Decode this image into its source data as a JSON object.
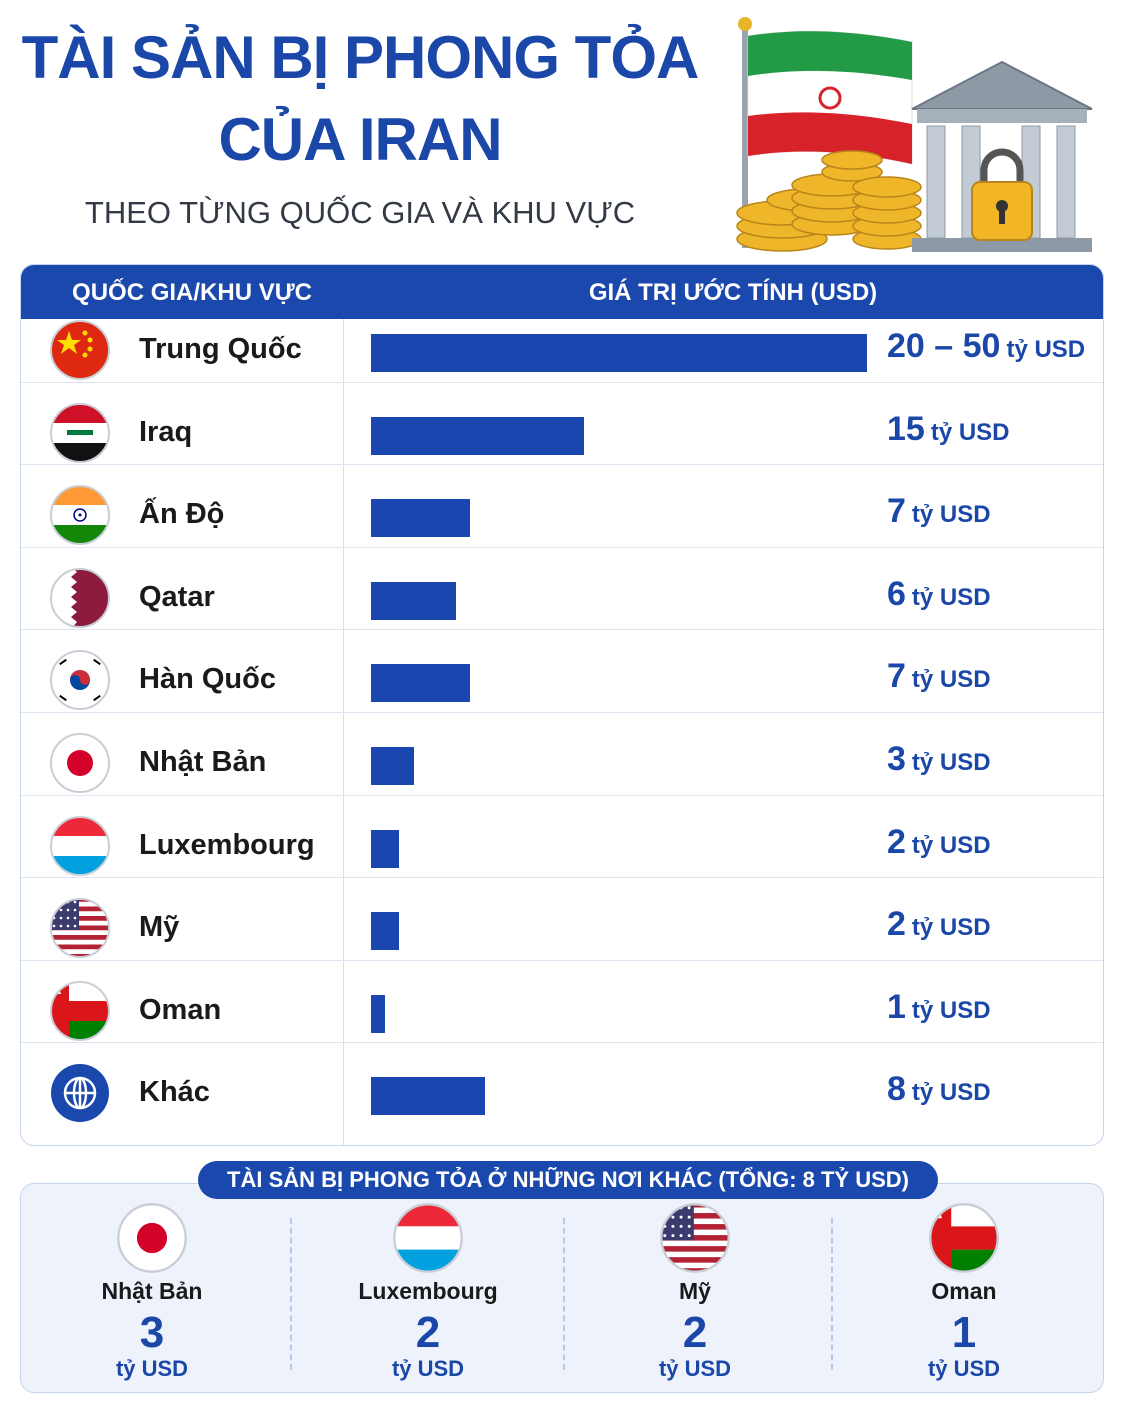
{
  "header": {
    "title_line1": "TÀI SẢN BỊ PHONG TỎA",
    "title_line2": "CỦA IRAN",
    "subtitle": "THEO TỪNG QUỐC GIA VÀ KHU VỰC"
  },
  "table": {
    "col_country": "QUỐC GIA/KHU VỰC",
    "col_value": "GIÁ TRỊ ƯỚC TÍNH (USD)"
  },
  "chart_data": {
    "type": "bar",
    "orientation": "horizontal",
    "title": "TÀI SẢN BỊ PHONG TỎA CỦA IRAN",
    "subtitle": "THEO TỪNG QUỐC GIA VÀ KHU VỰC",
    "xlabel": "GIÁ TRỊ ƯỚC TÍNH (USD)",
    "ylabel": "QUỐC GIA/KHU VỰC",
    "categories": [
      "Trung Quốc",
      "Iraq",
      "Ấn Độ",
      "Qatar",
      "Hàn Quốc",
      "Nhật Bản",
      "Luxembourg",
      "Mỹ",
      "Oman",
      "Khác"
    ],
    "values": [
      35,
      15,
      7,
      6,
      7,
      3,
      2,
      2,
      1,
      8
    ],
    "value_labels": [
      "20 – 50",
      "15",
      "7",
      "6",
      "7",
      "3",
      "2",
      "2",
      "1",
      "8"
    ],
    "unit": "tỷ USD",
    "flags": [
      "china-flag-icon",
      "iraq-flag-icon",
      "india-flag-icon",
      "qatar-flag-icon",
      "korea-flag-icon",
      "japan-flag-icon",
      "luxembourg-flag-icon",
      "usa-flag-icon",
      "oman-flag-icon",
      "globe-icon"
    ],
    "bar_color": "#1a46b0",
    "grid": false
  },
  "other": {
    "title": "TÀI SẢN BỊ PHONG TỎA Ở NHỮNG NƠI KHÁC (TỔNG: 8 TỶ USD)",
    "items": [
      {
        "name": "Nhật Bản",
        "value": "3",
        "unit": "tỷ USD",
        "icon": "japan-flag-icon"
      },
      {
        "name": "Luxembourg",
        "value": "2",
        "unit": "tỷ USD",
        "icon": "luxembourg-flag-icon"
      },
      {
        "name": "Mỹ",
        "value": "2",
        "unit": "tỷ USD",
        "icon": "usa-flag-icon"
      },
      {
        "name": "Oman",
        "value": "1",
        "unit": "tỷ USD",
        "icon": "oman-flag-icon"
      }
    ]
  },
  "colors": {
    "primary": "#1b48ad",
    "title": "#1a47a8",
    "panel": "#eef3fb"
  }
}
